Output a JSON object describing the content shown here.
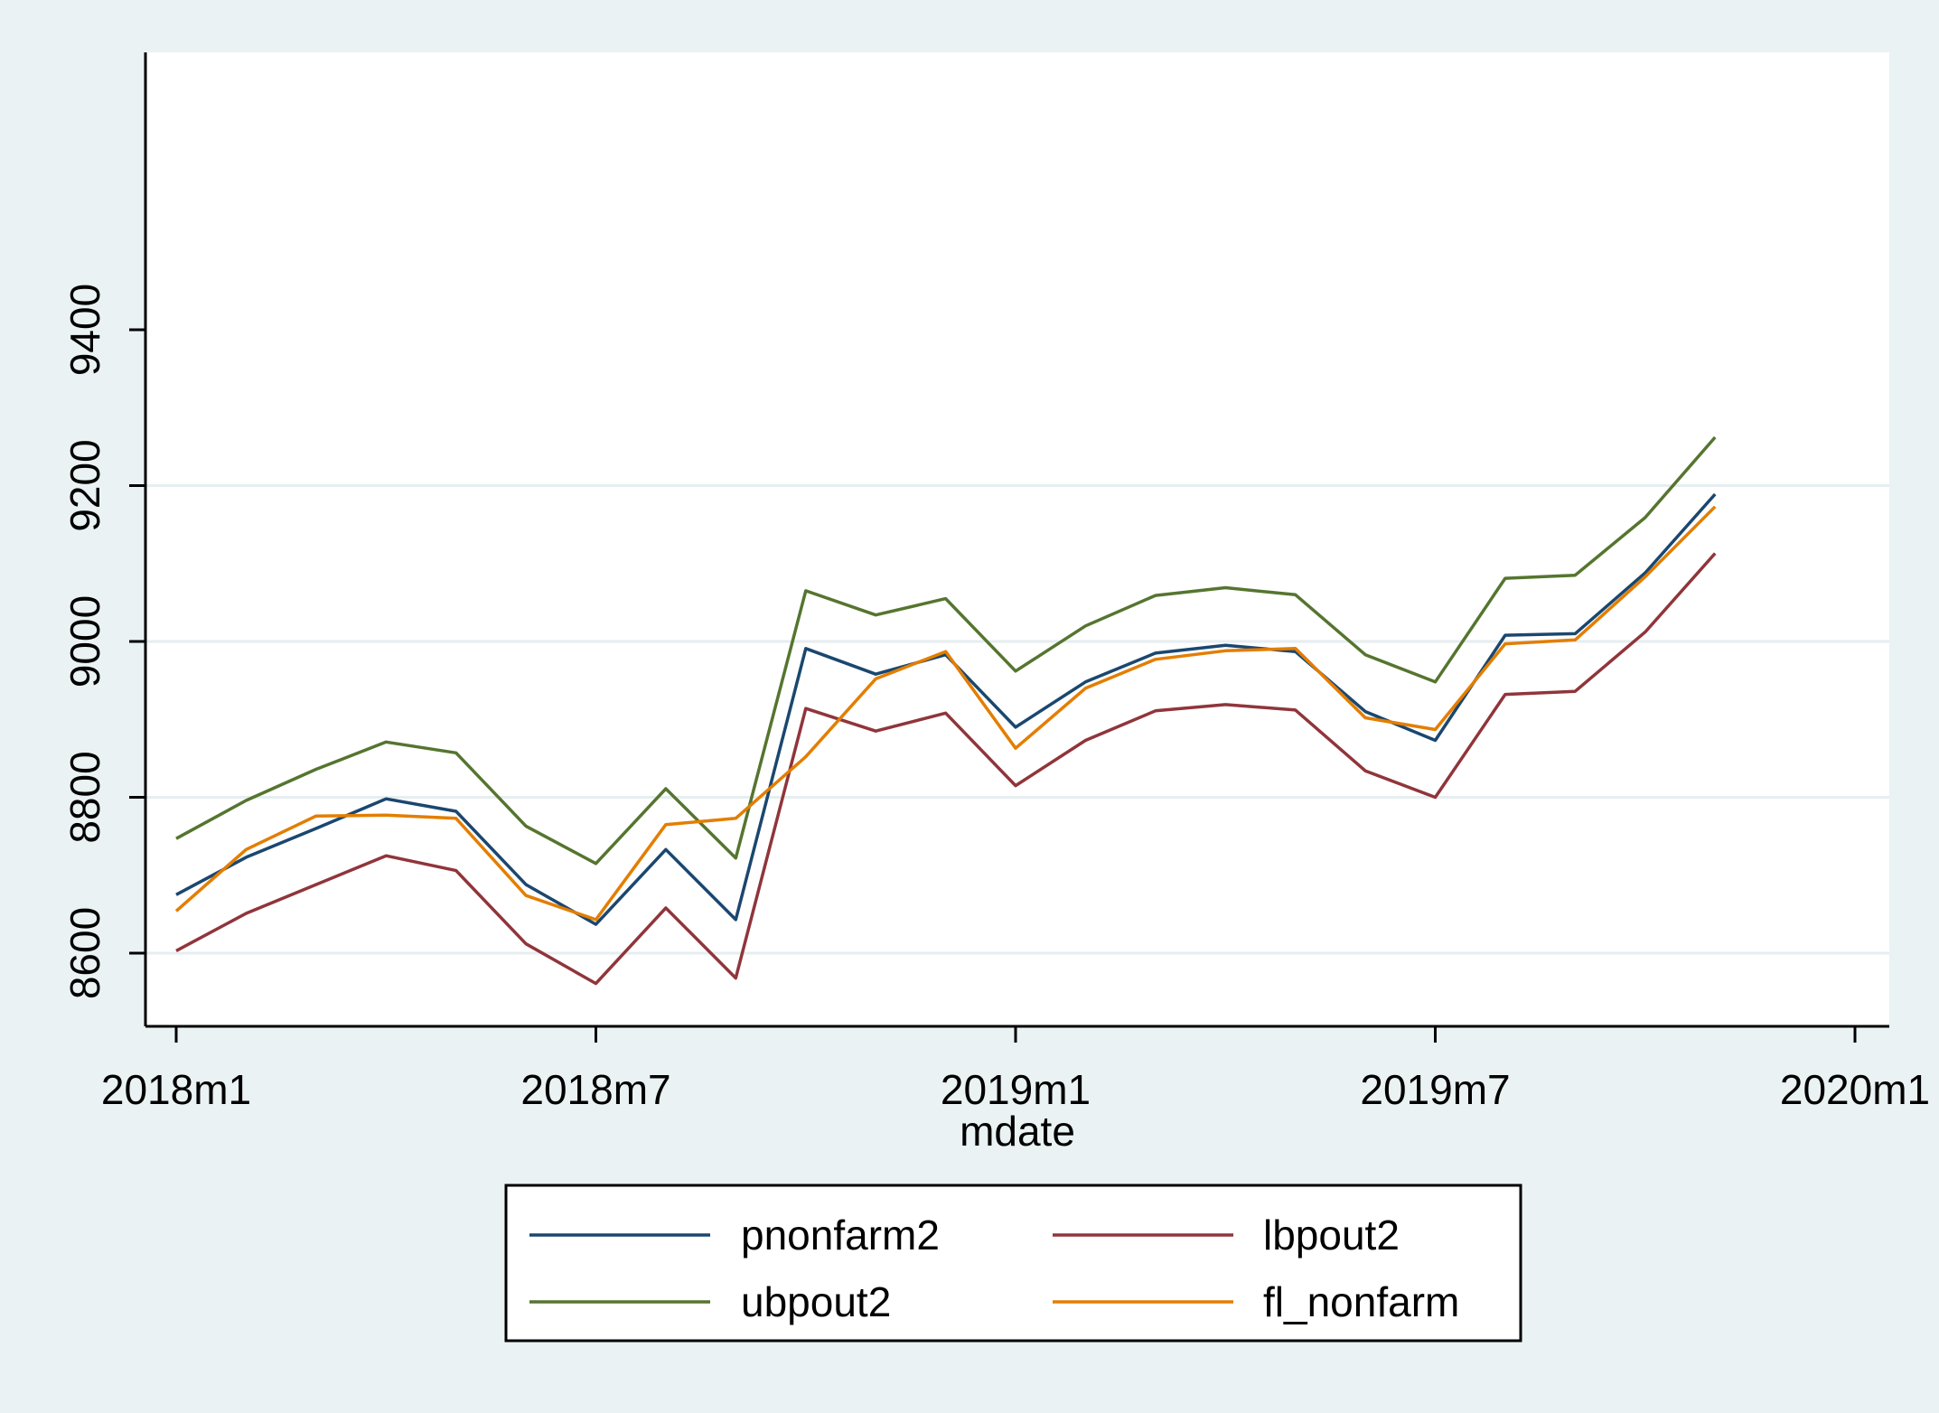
{
  "colors": {
    "background": "#eaf2f3",
    "plot_background": "#ffffff",
    "grid": "#e6eef0",
    "axis": "#000000"
  },
  "chart_data": {
    "type": "line",
    "title": "",
    "xlabel": "mdate",
    "ylabel": "",
    "x_ticks": [
      "2018m1",
      "2018m7",
      "2019m1",
      "2019m7",
      "2020m1"
    ],
    "y_ticks": [
      8600,
      8800,
      9000,
      9200,
      9400
    ],
    "xlim": [
      "2018m1",
      "2020m1"
    ],
    "ylim": [
      8535,
      9430
    ],
    "grid": true,
    "legend": {
      "position": "bottom",
      "columns": 2
    },
    "x": [
      "2018m1",
      "2018m2",
      "2018m3",
      "2018m4",
      "2018m5",
      "2018m6",
      "2018m7",
      "2018m8",
      "2018m9",
      "2018m10",
      "2018m11",
      "2018m12",
      "2019m1",
      "2019m2",
      "2019m3",
      "2019m4",
      "2019m5",
      "2019m6",
      "2019m7",
      "2019m8",
      "2019m9",
      "2019m10",
      "2019m11"
    ],
    "series": [
      {
        "name": "pnonfarm2",
        "color": "#1a476f",
        "values": [
          8675,
          8723,
          8760,
          8798,
          8782,
          8688,
          8637,
          8733,
          8643,
          8991,
          8958,
          8983,
          8890,
          8948,
          8985,
          8995,
          8987,
          8910,
          8873,
          9008,
          9010,
          9088,
          9189
        ]
      },
      {
        "name": "lbpout2",
        "color": "#90353b",
        "values": [
          8603,
          8651,
          8688,
          8725,
          8706,
          8612,
          8561,
          8658,
          8568,
          8914,
          8885,
          8908,
          8815,
          8873,
          8911,
          8919,
          8912,
          8834,
          8800,
          8932,
          8936,
          9012,
          9113
        ]
      },
      {
        "name": "ubpout2",
        "color": "#55752f",
        "values": [
          8747,
          8796,
          8836,
          8871,
          8857,
          8763,
          8715,
          8811,
          8722,
          9065,
          9034,
          9055,
          8962,
          9020,
          9059,
          9069,
          9060,
          8983,
          8948,
          9081,
          9085,
          9159,
          9262
        ]
      },
      {
        "name": "fl_nonfarm",
        "color": "#e37e00",
        "values": [
          8654,
          8733,
          8776,
          8777,
          8773,
          8674,
          8643,
          8765,
          8773,
          8852,
          8952,
          8987,
          8863,
          8940,
          8977,
          8988,
          8991,
          8902,
          8887,
          8997,
          9002,
          9083,
          9173
        ]
      }
    ]
  }
}
